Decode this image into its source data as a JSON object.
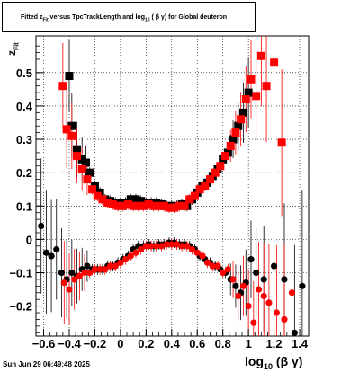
{
  "title": {
    "text": "Fitted z",
    "sub1": "Fit",
    "mid": " versus TpcTrackLength and log",
    "sub2": "10",
    "end": " ( β γ) for Global deuteron"
  },
  "footer": {
    "date": "Sun Jun 29 06:49:48 2025"
  },
  "axis": {
    "xlabel_main": "log",
    "xlabel_sub": "10",
    "xlabel_end": " (β γ)",
    "ylabel_main": "z",
    "ylabel_sub": "Fit"
  },
  "chart_data": {
    "type": "scatter",
    "xlim": [
      -0.66,
      1.47
    ],
    "ylim": [
      -0.29,
      0.61
    ],
    "grid": true,
    "xticks": [
      -0.6,
      -0.4,
      -0.2,
      0,
      0.2,
      0.4,
      0.6,
      0.8,
      1,
      1.2,
      1.4
    ],
    "xtick_labels": [
      "−0.6",
      "−0.4",
      "−0.2",
      "0",
      "0.2",
      "0.4",
      "0.6",
      "0.8",
      "1",
      "1.2",
      "1.4"
    ],
    "yticks": [
      -0.2,
      -0.1,
      0,
      0.1,
      0.2,
      0.3,
      0.4,
      0.5
    ],
    "ytick_labels": [
      "−0.2",
      "−0.1",
      "0",
      "0.1",
      "0.2",
      "0.3",
      "0.4",
      "0.5"
    ],
    "series": [
      {
        "color": "#000000",
        "marker": "square",
        "x": [
          -0.4,
          -0.38,
          -0.34,
          -0.3,
          -0.27,
          -0.24,
          -0.2,
          -0.16,
          -0.12,
          -0.08,
          -0.04,
          0.0,
          0.04,
          0.08,
          0.12,
          0.16,
          0.2,
          0.24,
          0.28,
          0.32,
          0.36,
          0.4,
          0.44,
          0.48,
          0.52,
          0.56,
          0.6,
          0.64,
          0.68,
          0.72,
          0.76,
          0.8,
          0.84,
          0.88,
          0.92,
          0.96,
          1.0
        ],
        "y": [
          0.49,
          0.34,
          0.27,
          0.24,
          0.23,
          0.2,
          0.16,
          0.14,
          0.12,
          0.115,
          0.11,
          0.11,
          0.11,
          0.12,
          0.12,
          0.115,
          0.11,
          0.11,
          0.11,
          0.105,
          0.1,
          0.1,
          0.1,
          0.105,
          0.1,
          0.12,
          0.14,
          0.16,
          0.17,
          0.19,
          0.21,
          0.24,
          0.26,
          0.3,
          0.34,
          0.38,
          0.44
        ]
      },
      {
        "color": "#ff0000",
        "marker": "square",
        "x": [
          -0.45,
          -0.42,
          -0.38,
          -0.34,
          -0.3,
          -0.26,
          -0.22,
          -0.18,
          -0.14,
          -0.1,
          -0.06,
          -0.02,
          0.02,
          0.06,
          0.1,
          0.14,
          0.18,
          0.22,
          0.26,
          0.3,
          0.34,
          0.38,
          0.42,
          0.46,
          0.5,
          0.54,
          0.58,
          0.62,
          0.66,
          0.7,
          0.74,
          0.78,
          0.82,
          0.86,
          0.9,
          0.94,
          0.98,
          1.02,
          1.06,
          1.1,
          1.14,
          1.2,
          1.26
        ],
        "y": [
          0.46,
          0.33,
          0.31,
          0.25,
          0.21,
          0.18,
          0.15,
          0.13,
          0.12,
          0.11,
          0.105,
          0.1,
          0.1,
          0.105,
          0.1,
          0.1,
          0.1,
          0.105,
          0.1,
          0.1,
          0.1,
          0.095,
          0.095,
          0.1,
          0.1,
          0.12,
          0.13,
          0.15,
          0.16,
          0.18,
          0.2,
          0.22,
          0.25,
          0.28,
          0.32,
          0.36,
          0.42,
          0.48,
          0.43,
          0.55,
          0.46,
          0.53,
          0.29
        ]
      },
      {
        "color": "#000000",
        "marker": "circle",
        "x": [
          -0.62,
          -0.58,
          -0.54,
          -0.5,
          -0.46,
          -0.42,
          -0.38,
          -0.34,
          -0.3,
          -0.26,
          -0.22,
          -0.18,
          -0.14,
          -0.1,
          -0.06,
          -0.02,
          0.02,
          0.06,
          0.1,
          0.14,
          0.18,
          0.22,
          0.26,
          0.3,
          0.34,
          0.38,
          0.42,
          0.46,
          0.5,
          0.54,
          0.58,
          0.62,
          0.66,
          0.7,
          0.74,
          0.78,
          0.82,
          0.86,
          0.9,
          0.94,
          0.98,
          1.02,
          1.06,
          1.12,
          1.2,
          1.28,
          1.36,
          1.42
        ],
        "y": [
          0.04,
          -0.04,
          -0.05,
          -0.03,
          -0.1,
          -0.12,
          -0.1,
          -0.11,
          -0.09,
          -0.08,
          -0.09,
          -0.09,
          -0.09,
          -0.08,
          -0.08,
          -0.07,
          -0.06,
          -0.05,
          -0.03,
          -0.02,
          -0.02,
          -0.015,
          -0.02,
          -0.015,
          -0.015,
          -0.01,
          -0.01,
          -0.015,
          -0.015,
          -0.02,
          -0.03,
          -0.05,
          -0.06,
          -0.07,
          -0.08,
          -0.09,
          -0.1,
          -0.12,
          -0.14,
          -0.16,
          -0.13,
          -0.06,
          -0.1,
          -0.12,
          -0.08,
          -0.12,
          -0.28,
          -0.14
        ]
      },
      {
        "color": "#ff0000",
        "marker": "circle",
        "x": [
          -0.44,
          -0.4,
          -0.36,
          -0.32,
          -0.28,
          -0.24,
          -0.2,
          -0.16,
          -0.12,
          -0.08,
          -0.04,
          0.0,
          0.04,
          0.08,
          0.12,
          0.16,
          0.2,
          0.24,
          0.28,
          0.32,
          0.36,
          0.4,
          0.44,
          0.48,
          0.52,
          0.56,
          0.6,
          0.64,
          0.68,
          0.72,
          0.76,
          0.8,
          0.84,
          0.88,
          0.92,
          0.96,
          1.0,
          1.04,
          1.08,
          1.12,
          1.16,
          1.22,
          1.28,
          1.34
        ],
        "y": [
          -0.13,
          -0.15,
          -0.12,
          -0.11,
          -0.1,
          -0.1,
          -0.09,
          -0.09,
          -0.09,
          -0.08,
          -0.08,
          -0.07,
          -0.06,
          -0.05,
          -0.04,
          -0.03,
          -0.02,
          -0.02,
          -0.02,
          -0.02,
          -0.015,
          -0.015,
          -0.015,
          -0.02,
          -0.02,
          -0.03,
          -0.04,
          -0.05,
          -0.07,
          -0.08,
          -0.08,
          -0.1,
          -0.09,
          -0.12,
          -0.17,
          -0.14,
          -0.2,
          -0.25,
          -0.15,
          -0.17,
          -0.19,
          -0.22,
          -0.24,
          -0.16
        ]
      }
    ]
  }
}
